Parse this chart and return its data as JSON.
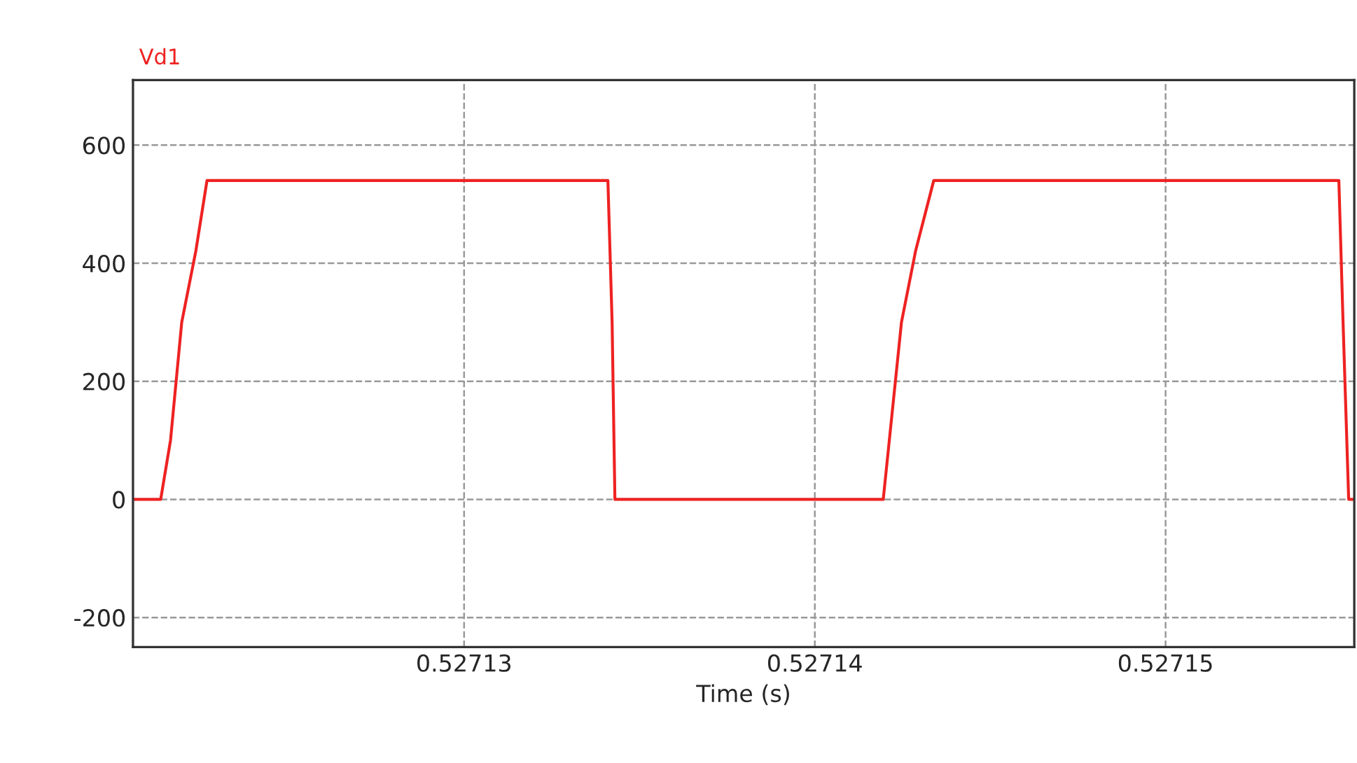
{
  "chart_data": {
    "type": "line",
    "xlabel": "Time (s)",
    "series": [
      {
        "name": "Vd1",
        "color": "#ee2222",
        "x": [
          0.52712056,
          0.52712135,
          0.52712163,
          0.52712195,
          0.52712235,
          0.52712267,
          0.5271341,
          0.52713422,
          0.5271343,
          0.52714195,
          0.52714247,
          0.52714287,
          0.52714339,
          0.52715494,
          0.52715506,
          0.52715522,
          0.52715538
        ],
        "values": [
          0,
          0,
          100,
          300,
          420,
          540,
          540,
          300,
          0,
          0,
          300,
          420,
          540,
          540,
          300,
          0,
          0
        ]
      }
    ],
    "xlim": [
      0.52712056,
      0.52715538
    ],
    "xticks": [
      0.52713,
      0.52714,
      0.52715
    ],
    "ylim": [
      -250,
      710
    ],
    "yticks": [
      -200,
      0,
      200,
      400,
      600
    ],
    "grid": true,
    "line_style": "solid",
    "marker": "none"
  }
}
